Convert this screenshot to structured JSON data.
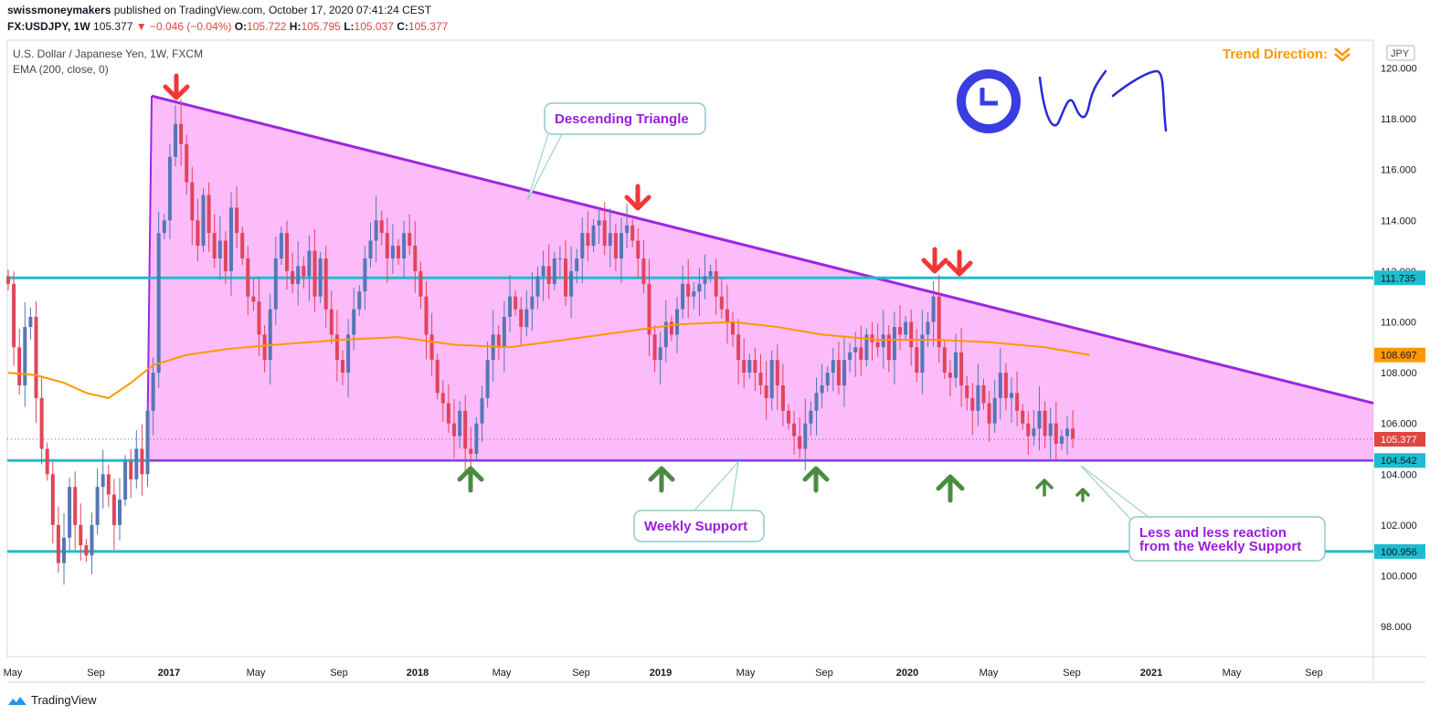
{
  "header": {
    "author": "swissmoneymakers",
    "published_text": "published on TradingView.com, October 17, 2020 07:41:24 CEST",
    "symbol": "FX:USDJPY, 1W",
    "last": "105.377",
    "change": "▼ −0.046 (−0.04%)",
    "o_label": "O:",
    "o_value": "105.722",
    "h_label": "H:",
    "h_value": "105.795",
    "l_label": "L:",
    "l_value": "105.037",
    "c_label": "C:",
    "c_value": "105.377"
  },
  "legend": {
    "instrument": "U.S. Dollar / Japanese Yen, 1W, FXCM",
    "indicator": "EMA (200, close, 0)"
  },
  "footer": {
    "brand": "TradingView"
  },
  "trend_direction": "Trend Direction:",
  "colors": {
    "triangle_fill": "#fcb0f8",
    "triangle_edge": "#9c27e0",
    "horizontal_line": "#1ebcd0",
    "ema": "#ff9800",
    "up_candle": "#5577b5",
    "down_candle": "#e0455a",
    "arrow_down": "#f23636",
    "arrow_up": "#4a8c3f",
    "clock_icon": "#3a3de0"
  },
  "chart_data": {
    "type": "candlestick",
    "title": "U.S. Dollar / Japanese Yen, 1W, FXCM",
    "ylim": [
      96.5,
      121.0
    ],
    "yticks": [
      "120.000",
      "118.000",
      "116.000",
      "114.000",
      "112.000",
      "110.000",
      "108.000",
      "106.000",
      "104.000",
      "102.000",
      "100.000",
      "98.000"
    ],
    "xticks": [
      "May",
      "Sep",
      "2017",
      "May",
      "Sep",
      "2018",
      "May",
      "Sep",
      "2019",
      "May",
      "Sep",
      "2020",
      "May",
      "Sep",
      "2021",
      "May",
      "Sep"
    ],
    "currency_label": "JPY",
    "price_labels": [
      {
        "value": "111.735",
        "price": 111.735,
        "color": "#1ebcd0",
        "text_color": "#131722"
      },
      {
        "value": "108.697",
        "price": 108.697,
        "color": "#ff9800",
        "text_color": "#131722"
      },
      {
        "value": "105.377",
        "price": 105.377,
        "color": "#e0453f",
        "text_color": "#ffffff"
      },
      {
        "value": "104.542",
        "price": 104.542,
        "color": "#1ebcd0",
        "text_color": "#131722"
      },
      {
        "value": "100.956",
        "price": 100.956,
        "color": "#1ebcd0",
        "text_color": "#131722"
      }
    ],
    "horizontal_levels": [
      111.735,
      104.542,
      100.956
    ],
    "descending_triangle": {
      "label": "Descending Triangle",
      "apex_price": 118.9,
      "right_end_price": 106.8,
      "base_price": 104.542
    },
    "ema_200": {
      "name": "EMA (200, close, 0)",
      "points": [
        [
          0,
          108.0
        ],
        [
          5,
          107.9
        ],
        [
          10,
          107.6
        ],
        [
          14,
          107.2
        ],
        [
          18,
          107.0
        ],
        [
          22,
          107.6
        ],
        [
          26,
          108.3
        ],
        [
          32,
          108.7
        ],
        [
          40,
          108.95
        ],
        [
          48,
          109.1
        ],
        [
          60,
          109.3
        ],
        [
          70,
          109.4
        ],
        [
          80,
          109.1
        ],
        [
          90,
          109.0
        ],
        [
          100,
          109.3
        ],
        [
          110,
          109.6
        ],
        [
          120,
          109.9
        ],
        [
          130,
          110.0
        ],
        [
          138,
          109.8
        ],
        [
          146,
          109.5
        ],
        [
          156,
          109.3
        ],
        [
          166,
          109.3
        ],
        [
          176,
          109.2
        ],
        [
          186,
          109.0
        ],
        [
          194,
          108.7
        ]
      ]
    },
    "candles": {
      "series_note": "weekly OHLC, approximate",
      "closes": [
        111.5,
        109.0,
        107.5,
        109.8,
        110.2,
        107.0,
        105.0,
        104.0,
        102.0,
        100.5,
        101.5,
        103.5,
        102.0,
        101.2,
        100.8,
        102.0,
        103.5,
        104.0,
        103.2,
        102.0,
        103.0,
        104.5,
        103.8,
        105.0,
        104.0,
        106.5,
        108.0,
        113.5,
        114.0,
        116.5,
        117.8,
        117.0,
        115.5,
        114.0,
        113.0,
        115.0,
        113.5,
        112.5,
        113.2,
        112.0,
        114.5,
        113.5,
        112.5,
        111.0,
        110.8,
        109.5,
        108.5,
        110.5,
        112.5,
        113.5,
        112.0,
        111.5,
        112.2,
        111.8,
        112.8,
        111.0,
        112.5,
        110.5,
        109.5,
        108.5,
        108.0,
        109.5,
        110.5,
        111.2,
        112.5,
        113.2,
        114.0,
        113.5,
        112.5,
        113.0,
        112.5,
        113.5,
        113.0,
        112.0,
        111.0,
        109.5,
        108.5,
        107.2,
        106.8,
        106.0,
        105.5,
        106.5,
        105.0,
        104.8,
        106.0,
        107.0,
        108.5,
        109.5,
        109.0,
        110.2,
        111.0,
        110.5,
        109.8,
        110.5,
        111.0,
        111.8,
        112.2,
        111.5,
        112.5,
        112.5,
        111.0,
        112.0,
        112.5,
        113.5,
        113.0,
        113.8,
        114.0,
        113.0,
        113.5,
        112.5,
        113.5,
        113.8,
        113.2,
        112.5,
        111.5,
        109.5,
        108.5,
        109.0,
        110.0,
        109.5,
        110.5,
        111.5,
        111.0,
        111.2,
        111.5,
        111.8,
        112.0,
        111.0,
        110.5,
        110.0,
        109.5,
        108.5,
        108.0,
        108.5,
        108.0,
        107.5,
        107.0,
        108.5,
        107.5,
        106.5,
        106.0,
        105.5,
        105.0,
        106.0,
        106.5,
        107.2,
        107.5,
        108.0,
        108.5,
        107.5,
        108.5,
        108.8,
        109.0,
        108.5,
        109.5,
        109.2,
        109.0,
        109.5,
        108.5,
        109.8,
        109.5,
        110.0,
        109.0,
        108.0,
        109.5,
        110.0,
        111.0,
        109.0,
        108.0,
        107.8,
        108.8,
        107.5,
        107.0,
        106.5,
        107.5,
        106.8,
        106.0,
        107.0,
        108.0,
        107.0,
        107.2,
        106.5,
        106.0,
        105.5,
        105.8,
        106.5,
        105.5,
        106.0,
        105.2,
        105.5,
        105.8,
        105.4
      ]
    },
    "annotations": {
      "descending_triangle": "Descending Triangle",
      "weekly_support": "Weekly Support",
      "less_reaction_line1": "Less and less reaction",
      "less_reaction_line2": "from the Weekly Support"
    }
  }
}
